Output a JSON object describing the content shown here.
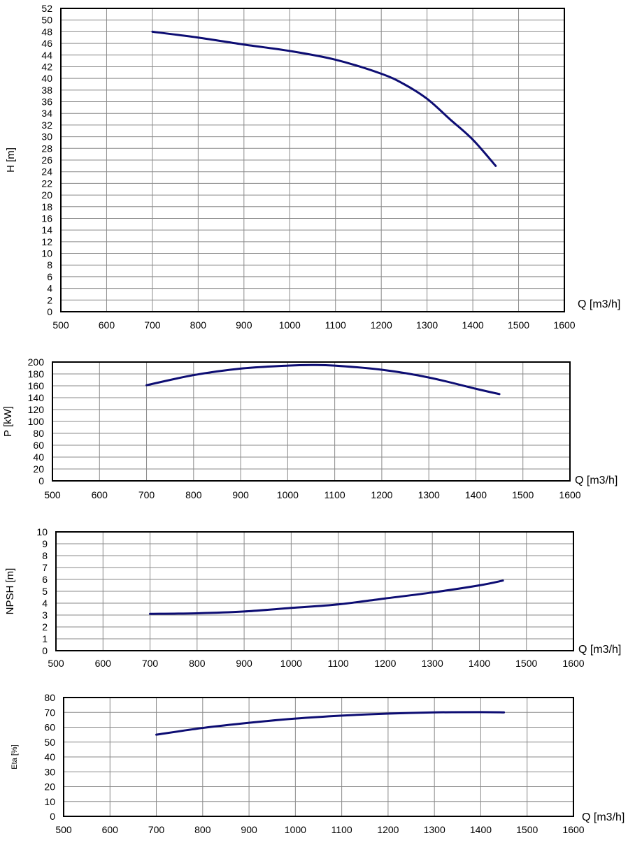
{
  "chart_data": [
    {
      "type": "line",
      "ylabel": "H [m]",
      "xlabel": "Q [m3/h]",
      "xlim": [
        500,
        1600
      ],
      "ylim": [
        0,
        52
      ],
      "x_ticks": [
        "500",
        "600",
        "700",
        "800",
        "900",
        "1000",
        "1100",
        "1200",
        "1300",
        "1400",
        "1500",
        "1600"
      ],
      "y_ticks": [
        "0",
        "2",
        "4",
        "6",
        "8",
        "10",
        "12",
        "14",
        "16",
        "18",
        "20",
        "22",
        "24",
        "26",
        "28",
        "30",
        "32",
        "34",
        "36",
        "38",
        "40",
        "42",
        "44",
        "46",
        "48",
        "50",
        "52"
      ],
      "grid": true,
      "series": [
        {
          "x": [
            700,
            800,
            900,
            1000,
            1100,
            1200,
            1250,
            1300,
            1350,
            1400,
            1450
          ],
          "y": [
            48,
            47,
            45.8,
            44.7,
            43.2,
            40.8,
            39,
            36.5,
            33,
            29.5,
            25
          ]
        }
      ]
    },
    {
      "type": "line",
      "ylabel": "P [kW]",
      "xlabel": "Q [m3/h]",
      "xlim": [
        500,
        1600
      ],
      "ylim": [
        0,
        200
      ],
      "x_ticks": [
        "500",
        "600",
        "700",
        "800",
        "900",
        "1000",
        "1100",
        "1200",
        "1300",
        "1400",
        "1500",
        "1600"
      ],
      "y_ticks": [
        "0",
        "20",
        "40",
        "60",
        "80",
        "100",
        "120",
        "140",
        "160",
        "180",
        "200"
      ],
      "grid": true,
      "series": [
        {
          "x": [
            700,
            800,
            900,
            1000,
            1050,
            1100,
            1200,
            1300,
            1400,
            1450
          ],
          "y": [
            161,
            178,
            189,
            194,
            195,
            194,
            187,
            174,
            155,
            146
          ]
        }
      ]
    },
    {
      "type": "line",
      "ylabel": "NPSH [m]",
      "xlabel": "Q [m3/h]",
      "xlim": [
        500,
        1600
      ],
      "ylim": [
        0,
        10
      ],
      "x_ticks": [
        "500",
        "600",
        "700",
        "800",
        "900",
        "1000",
        "1100",
        "1200",
        "1300",
        "1400",
        "1500",
        "1600"
      ],
      "y_ticks": [
        "0",
        "1",
        "2",
        "3",
        "4",
        "5",
        "6",
        "7",
        "8",
        "9",
        "10"
      ],
      "grid": true,
      "series": [
        {
          "x": [
            700,
            800,
            900,
            1000,
            1100,
            1200,
            1300,
            1400,
            1450
          ],
          "y": [
            3.1,
            3.15,
            3.3,
            3.6,
            3.9,
            4.4,
            4.9,
            5.5,
            5.9
          ]
        }
      ]
    },
    {
      "type": "line",
      "ylabel": "Eta [%]",
      "xlabel": "Q [m3/h]",
      "xlim": [
        500,
        1600
      ],
      "ylim": [
        0,
        80
      ],
      "x_ticks": [
        "500",
        "600",
        "700",
        "800",
        "900",
        "1000",
        "1100",
        "1200",
        "1300",
        "1400",
        "1500",
        "1600"
      ],
      "y_ticks": [
        "0",
        "10",
        "20",
        "30",
        "40",
        "50",
        "60",
        "70",
        "80"
      ],
      "grid": true,
      "series": [
        {
          "x": [
            700,
            800,
            900,
            1000,
            1100,
            1200,
            1300,
            1400,
            1450
          ],
          "y": [
            55,
            59.5,
            63,
            65.8,
            67.8,
            69.2,
            70,
            70.2,
            70
          ]
        }
      ]
    }
  ],
  "colors": {
    "curve": "#0d0d73",
    "grid": "#8a8a8a",
    "frame": "#000000"
  }
}
